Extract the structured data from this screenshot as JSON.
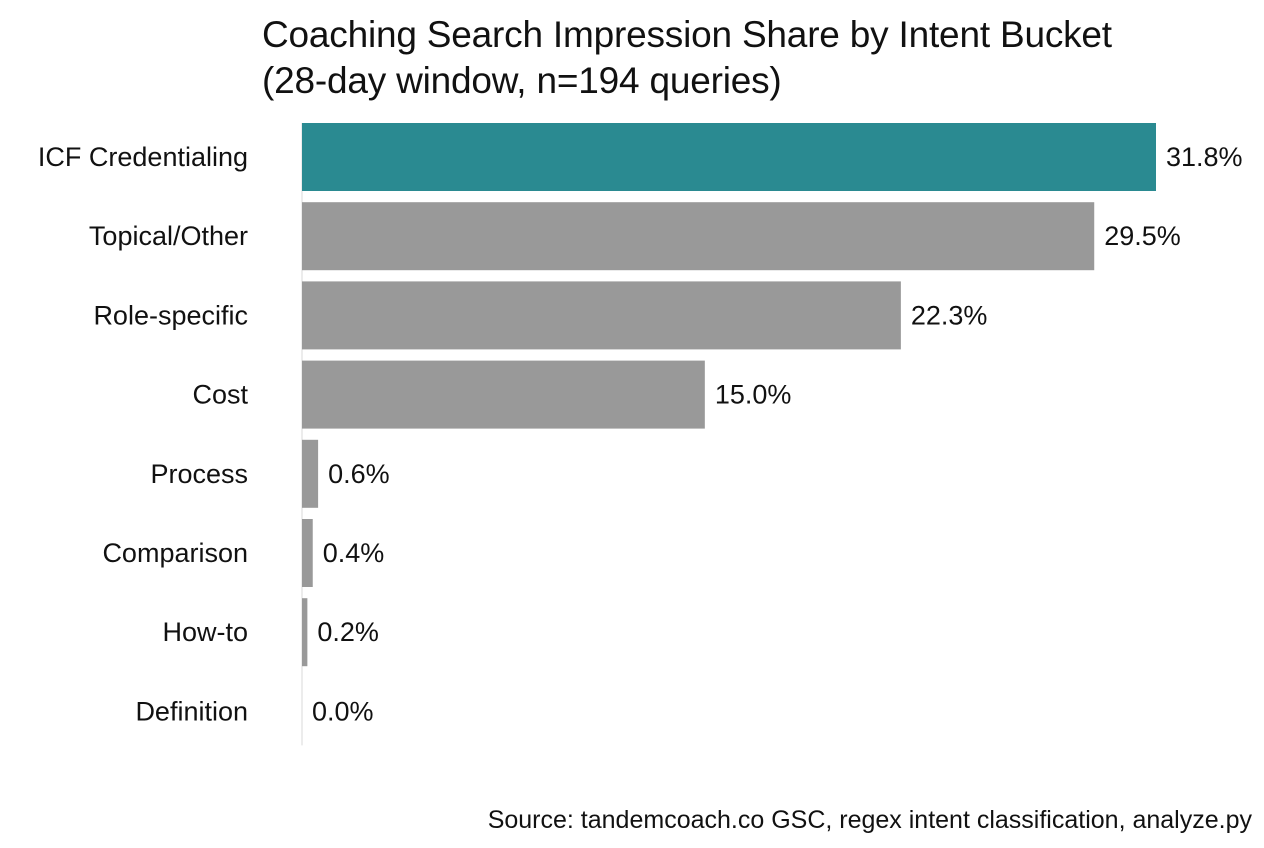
{
  "chart_data": {
    "type": "bar",
    "orientation": "horizontal",
    "title": "Coaching Search Impression Share by Intent Bucket",
    "subtitle": "(28-day window, n=194 queries)",
    "categories": [
      "ICF Credentialing",
      "Topical/Other",
      "Role-specific",
      "Cost",
      "Process",
      "Comparison",
      "How-to",
      "Definition"
    ],
    "values": [
      31.8,
      29.5,
      22.3,
      15.0,
      0.6,
      0.4,
      0.2,
      0.0
    ],
    "value_labels": [
      "31.8%",
      "29.5%",
      "22.3%",
      "15.0%",
      "0.6%",
      "0.4%",
      "0.2%",
      "0.0%"
    ],
    "unit": "%",
    "xlim": [
      0,
      31.8
    ],
    "grid": false,
    "highlight_index": 0,
    "colors": {
      "highlight": "#2a8a91",
      "default": "#999999",
      "axis": "#d9d9d9"
    }
  },
  "source": "Source: tandemcoach.co GSC, regex intent classification, analyze.py"
}
